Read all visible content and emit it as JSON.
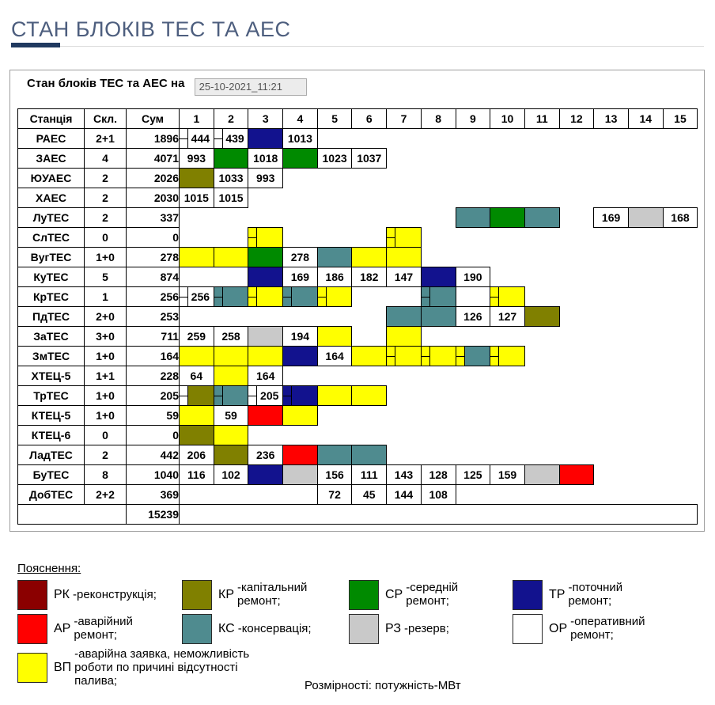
{
  "page": {
    "title": "СТАН БЛОКІВ ТЕС ТА АЕС"
  },
  "panel": {
    "heading": "Стан блоків ТЕС та АЕС на",
    "datetime_value": "25-10-2021_11:21"
  },
  "colors": {
    "rk": "#8B0000",
    "kr": "#808000",
    "sr": "#008A00",
    "tr": "#12128E",
    "ar": "#FF0000",
    "ks": "#4F8B8F",
    "rz": "#C9C9C9",
    "or": "#FFFFFF",
    "vp": "#FFFF00",
    "w": "#FFFFFF"
  },
  "table": {
    "headers": [
      "Станція",
      "Скл.",
      "Сум",
      "1",
      "2",
      "3",
      "4",
      "5",
      "6",
      "7",
      "8",
      "9",
      "10",
      "11",
      "12",
      "13",
      "14",
      "15"
    ],
    "rows": [
      {
        "station": "РАЕС",
        "skl": "2+1",
        "sum": "1896",
        "cells": [
          {
            "c": 1,
            "v": "444",
            "s": "w"
          },
          {
            "c": 2,
            "v": "439",
            "s": "w"
          },
          {
            "c": 3,
            "bg": "tr"
          },
          {
            "c": 4,
            "v": "1013"
          }
        ]
      },
      {
        "station": "ЗАЕС",
        "skl": "4",
        "sum": "4071",
        "cells": [
          {
            "c": 1,
            "v": "993"
          },
          {
            "c": 2,
            "bg": "sr"
          },
          {
            "c": 3,
            "v": "1018"
          },
          {
            "c": 4,
            "bg": "sr"
          },
          {
            "c": 5,
            "v": "1023"
          },
          {
            "c": 6,
            "v": "1037"
          }
        ]
      },
      {
        "station": "ЮУАЕС",
        "skl": "2",
        "sum": "2026",
        "cells": [
          {
            "c": 1,
            "bg": "kr"
          },
          {
            "c": 2,
            "v": "1033"
          },
          {
            "c": 3,
            "v": "993"
          }
        ]
      },
      {
        "station": "ХАЕС",
        "skl": "2",
        "sum": "2030",
        "cells": [
          {
            "c": 1,
            "v": "1015"
          },
          {
            "c": 2,
            "v": "1015"
          }
        ]
      },
      {
        "station": "ЛуТЕС",
        "skl": "2",
        "sum": "337",
        "cells": [
          {
            "c": 9,
            "bg": "ks"
          },
          {
            "c": 10,
            "bg": "sr"
          },
          {
            "c": 11,
            "bg": "ks"
          },
          {
            "c": 13,
            "v": "169"
          },
          {
            "c": 14,
            "bg": "rz"
          },
          {
            "c": 15,
            "v": "168"
          }
        ]
      },
      {
        "station": "СлТЕС",
        "skl": "0",
        "sum": "0",
        "cells": [
          {
            "c": 3,
            "bg": "vp",
            "s": "vp"
          },
          {
            "c": 7,
            "bg": "vp",
            "s": "vp"
          }
        ]
      },
      {
        "station": "ВугТЕС",
        "skl": "1+0",
        "sum": "278",
        "cells": [
          {
            "c": 1,
            "bg": "vp"
          },
          {
            "c": 2,
            "bg": "vp"
          },
          {
            "c": 3,
            "bg": "sr"
          },
          {
            "c": 4,
            "v": "278"
          },
          {
            "c": 5,
            "bg": "ks"
          },
          {
            "c": 6,
            "bg": "vp"
          },
          {
            "c": 7,
            "bg": "vp"
          }
        ]
      },
      {
        "station": "КуТЕС",
        "skl": "5",
        "sum": "874",
        "cells": [
          {
            "c": 3,
            "bg": "tr"
          },
          {
            "c": 4,
            "v": "169"
          },
          {
            "c": 5,
            "v": "186"
          },
          {
            "c": 6,
            "v": "182"
          },
          {
            "c": 7,
            "v": "147"
          },
          {
            "c": 8,
            "bg": "tr"
          },
          {
            "c": 9,
            "v": "190"
          }
        ]
      },
      {
        "station": "КрТЕС",
        "skl": "1",
        "sum": "256",
        "cells": [
          {
            "c": 1,
            "v": "256",
            "s": "w"
          },
          {
            "c": 2,
            "bg": "ks",
            "s": "ks"
          },
          {
            "c": 3,
            "bg": "vp",
            "s": "vp"
          },
          {
            "c": 4,
            "bg": "ks",
            "s": "ks"
          },
          {
            "c": 5,
            "bg": "vp",
            "s": "vp"
          },
          {
            "c": 8,
            "bg": "ks",
            "s": "ks"
          },
          {
            "c": 10,
            "bg": "vp",
            "s": "vp"
          }
        ]
      },
      {
        "station": "ПдТЕС",
        "skl": "2+0",
        "sum": "253",
        "cells": [
          {
            "c": 7,
            "bg": "ks"
          },
          {
            "c": 8,
            "bg": "ks"
          },
          {
            "c": 9,
            "v": "126"
          },
          {
            "c": 10,
            "v": "127"
          },
          {
            "c": 11,
            "bg": "kr"
          }
        ]
      },
      {
        "station": "ЗаТЕС",
        "skl": "3+0",
        "sum": "711",
        "cells": [
          {
            "c": 1,
            "v": "259"
          },
          {
            "c": 2,
            "v": "258"
          },
          {
            "c": 3,
            "bg": "rz"
          },
          {
            "c": 4,
            "v": "194"
          },
          {
            "c": 5,
            "bg": "vp"
          },
          {
            "c": 7,
            "bg": "vp"
          }
        ]
      },
      {
        "station": "ЗмТЕС",
        "skl": "1+0",
        "sum": "164",
        "cells": [
          {
            "c": 1,
            "bg": "vp"
          },
          {
            "c": 2,
            "bg": "vp"
          },
          {
            "c": 3,
            "bg": "vp"
          },
          {
            "c": 4,
            "bg": "tr"
          },
          {
            "c": 5,
            "v": "164"
          },
          {
            "c": 6,
            "bg": "vp"
          },
          {
            "c": 7,
            "bg": "vp",
            "s": "vp"
          },
          {
            "c": 8,
            "bg": "vp",
            "s": "vp"
          },
          {
            "c": 9,
            "bg": "ks",
            "s": "vp"
          },
          {
            "c": 10,
            "bg": "vp",
            "s": "vp"
          }
        ]
      },
      {
        "station": "ХТЕЦ-5",
        "skl": "1+1",
        "sum": "228",
        "cells": [
          {
            "c": 1,
            "v": "64"
          },
          {
            "c": 2,
            "bg": "vp"
          },
          {
            "c": 3,
            "v": "164"
          }
        ]
      },
      {
        "station": "ТрТЕС",
        "skl": "1+0",
        "sum": "205",
        "cells": [
          {
            "c": 1,
            "bg": "kr",
            "s": "w"
          },
          {
            "c": 2,
            "bg": "ks",
            "s": "ks"
          },
          {
            "c": 3,
            "v": "205",
            "s": "w"
          },
          {
            "c": 4,
            "bg": "tr",
            "s": "tr"
          },
          {
            "c": 5,
            "bg": "vp"
          },
          {
            "c": 6,
            "bg": "vp"
          }
        ]
      },
      {
        "station": "КТЕЦ-5",
        "skl": "1+0",
        "sum": "59",
        "cells": [
          {
            "c": 1,
            "bg": "vp"
          },
          {
            "c": 2,
            "v": "59"
          },
          {
            "c": 3,
            "bg": "ar"
          },
          {
            "c": 4,
            "bg": "vp"
          }
        ]
      },
      {
        "station": "КТЕЦ-6",
        "skl": "0",
        "sum": "0",
        "cells": [
          {
            "c": 1,
            "bg": "kr"
          },
          {
            "c": 2,
            "bg": "vp"
          }
        ]
      },
      {
        "station": "ЛадТЕС",
        "skl": "2",
        "sum": "442",
        "cells": [
          {
            "c": 1,
            "v": "206"
          },
          {
            "c": 2,
            "bg": "kr"
          },
          {
            "c": 3,
            "v": "236"
          },
          {
            "c": 4,
            "bg": "ar"
          },
          {
            "c": 5,
            "bg": "ks"
          },
          {
            "c": 6,
            "bg": "ks"
          }
        ]
      },
      {
        "station": "БуТЕС",
        "skl": "8",
        "sum": "1040",
        "cells": [
          {
            "c": 1,
            "v": "116"
          },
          {
            "c": 2,
            "v": "102"
          },
          {
            "c": 3,
            "bg": "tr"
          },
          {
            "c": 4,
            "bg": "rz"
          },
          {
            "c": 5,
            "v": "156"
          },
          {
            "c": 6,
            "v": "111"
          },
          {
            "c": 7,
            "v": "143"
          },
          {
            "c": 8,
            "v": "128"
          },
          {
            "c": 9,
            "v": "125"
          },
          {
            "c": 10,
            "v": "159"
          },
          {
            "c": 11,
            "bg": "rz"
          },
          {
            "c": 12,
            "bg": "ar"
          }
        ]
      },
      {
        "station": "ДобТЕС",
        "skl": "2+2",
        "sum": "369",
        "cells": [
          {
            "c": 1,
            "span": 4
          },
          {
            "c": 5,
            "v": "72"
          },
          {
            "c": 6,
            "v": "45"
          },
          {
            "c": 7,
            "v": "144"
          },
          {
            "c": 8,
            "v": "108"
          }
        ]
      }
    ],
    "total": "15239"
  },
  "legend": {
    "heading": "Пояснення:",
    "items": [
      {
        "code": "РК",
        "desc": "-реконструкція;",
        "color_key": "rk"
      },
      {
        "code": "КР",
        "desc": "-капітальний ремонт;",
        "color_key": "kr"
      },
      {
        "code": "СР",
        "desc": "-середній ремонт;",
        "color_key": "sr"
      },
      {
        "code": "ТР",
        "desc": "-поточний ремонт;",
        "color_key": "tr"
      },
      {
        "code": "АР",
        "desc": "-аварійний ремонт;",
        "color_key": "ar"
      },
      {
        "code": "КС",
        "desc": "-консервація;",
        "color_key": "ks"
      },
      {
        "code": "РЗ",
        "desc": "-резерв;",
        "color_key": "rz"
      },
      {
        "code": "ОР",
        "desc": "-оперативний ремонт;",
        "color_key": "or"
      },
      {
        "code": "ВП",
        "desc": "-аварійна заявка, неможливість роботи по причині відсутності палива;",
        "color_key": "vp"
      }
    ],
    "footnote": "Розмірності: потужність-МВт"
  }
}
